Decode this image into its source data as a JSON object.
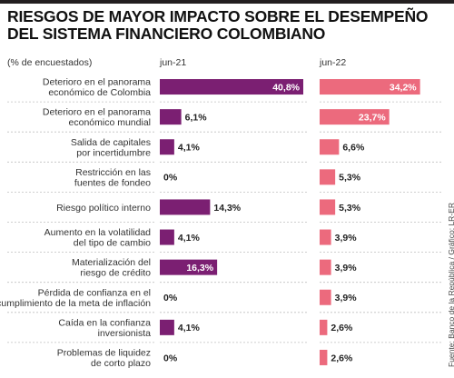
{
  "title_line1": "RIESGOS DE MAYOR IMPACTO SOBRE EL DESEMPEÑO",
  "title_line2": "DEL SISTEMA FINANCIERO COLOMBIANO",
  "subtitle": "(% de encuestados)",
  "source": "Fuente: Banco de la República / Gráfico: LR-ER",
  "chart_data": {
    "type": "bar",
    "orientation": "horizontal",
    "categories": [
      [
        "Deterioro en el panorama",
        "económico de Colombia"
      ],
      [
        "Deterioro en el panorama",
        "económico mundial"
      ],
      [
        "Salida de capitales",
        "por incertidumbre"
      ],
      [
        "Restricción en las",
        "fuentes de fondeo"
      ],
      [
        "Riesgo político interno"
      ],
      [
        "Aumento en la volatilidad",
        "del tipo de cambio"
      ],
      [
        "Materialización del",
        "riesgo de crédito"
      ],
      [
        "Pérdida de confianza en el",
        "cumplimiento de la meta de inflación"
      ],
      [
        "Caída en la confianza",
        "inversionista"
      ],
      [
        "Problemas de liquidez",
        "de corto plazo"
      ]
    ],
    "series": [
      {
        "name": "jun-21",
        "color": "#7b1f72",
        "values": [
          40.8,
          6.1,
          4.1,
          0,
          14.3,
          4.1,
          16.3,
          0,
          4.1,
          0
        ],
        "labels": [
          "40,8%",
          "6,1%",
          "4,1%",
          "0%",
          "14,3%",
          "4,1%",
          "16,3%",
          "0%",
          "4,1%",
          "0%"
        ]
      },
      {
        "name": "jun-22",
        "color": "#ec6a7d",
        "values": [
          34.2,
          23.7,
          6.6,
          5.3,
          5.3,
          3.9,
          3.9,
          3.9,
          2.6,
          2.6
        ],
        "labels": [
          "34,2%",
          "23,7%",
          "6,6%",
          "5,3%",
          "5,3%",
          "3,9%",
          "3,9%",
          "3,9%",
          "2,6%",
          "2,6%"
        ]
      }
    ],
    "xlim": [
      0,
      40.8
    ],
    "grid": false,
    "separator_color": "#bfbfbf"
  }
}
